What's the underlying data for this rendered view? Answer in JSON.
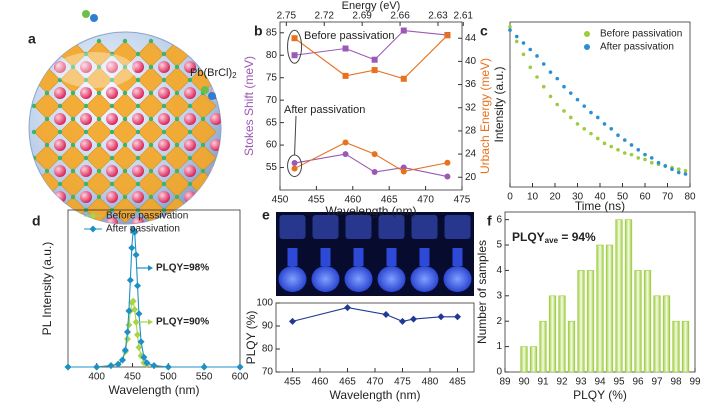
{
  "illustration": {
    "panel": "a",
    "label": "Pb(BrCl)",
    "label_sub": "2"
  },
  "chart_data": [
    {
      "panel": "b",
      "type": "line",
      "x_label": "Wavelength (nm)",
      "y_label": "Stokes Shift (meV)",
      "y2_label": "Urbach Energy (meV)",
      "x2_label": "Energy (eV)",
      "x": [
        452,
        459,
        463,
        467,
        473
      ],
      "series": [
        {
          "color": "#9b59b6",
          "marker": "square",
          "values": [
            80,
            81.5,
            79,
            85.5,
            84.5
          ]
        },
        {
          "color": "#9b59b6",
          "marker": "circle",
          "values": [
            56,
            58,
            54,
            55,
            53
          ]
        },
        {
          "color": "#e8711c",
          "marker": "square",
          "axis": "y2",
          "values": [
            44,
            37.5,
            38.5,
            37,
            44.5
          ]
        },
        {
          "color": "#e8711c",
          "marker": "circle",
          "axis": "y2",
          "values": [
            21.5,
            26,
            24,
            21,
            22.5
          ]
        }
      ],
      "annotations": [
        "Before passivation",
        "After passivation"
      ],
      "xlim": [
        450,
        475
      ],
      "xticks": [
        450,
        455,
        460,
        465,
        470,
        475
      ],
      "ylim": [
        50,
        87.4
      ],
      "yticks": [
        55,
        60,
        65,
        70,
        75,
        80,
        85
      ],
      "y2lim": [
        17.8,
        46.8
      ],
      "y2ticks": [
        20,
        24,
        28,
        32,
        36,
        40,
        44
      ],
      "x2lim": [
        2.755,
        2.611
      ],
      "x2ticks": [
        2.75,
        2.72,
        2.69,
        2.66,
        2.63,
        2.61
      ]
    },
    {
      "panel": "c",
      "type": "scatter",
      "x_label": "Time (ns)",
      "y_label": "Intensity (a.u.)",
      "x": [
        0,
        3,
        6,
        9,
        12,
        15,
        18,
        21,
        24,
        27,
        30,
        33,
        36,
        39,
        42,
        45,
        48,
        51,
        54,
        57,
        60,
        63,
        66,
        69,
        72,
        75,
        78
      ],
      "series": [
        {
          "name": "Before passivation",
          "color": "#9ccc3c",
          "values": [
            0.99,
            0.9,
            0.82,
            0.74,
            0.68,
            0.62,
            0.56,
            0.51,
            0.47,
            0.43,
            0.39,
            0.36,
            0.33,
            0.3,
            0.27,
            0.25,
            0.23,
            0.21,
            0.2,
            0.18,
            0.17,
            0.15,
            0.14,
            0.13,
            0.12,
            0.11,
            0.1
          ]
        },
        {
          "name": "After passivation",
          "color": "#2a8fd0",
          "values": [
            0.97,
            0.93,
            0.89,
            0.85,
            0.81,
            0.76,
            0.71,
            0.67,
            0.62,
            0.58,
            0.54,
            0.5,
            0.46,
            0.43,
            0.39,
            0.36,
            0.32,
            0.29,
            0.26,
            0.23,
            0.2,
            0.18,
            0.15,
            0.13,
            0.11,
            0.09,
            0.08
          ]
        }
      ],
      "xlim": [
        0,
        80
      ],
      "xticks": [
        0,
        10,
        20,
        30,
        40,
        50,
        60,
        70,
        80
      ],
      "ylim": [
        0,
        1.02
      ]
    },
    {
      "panel": "d",
      "type": "line",
      "x_label": "Wavelength (nm)",
      "y_label": "PL Intensity (a.u.)",
      "x": [
        360,
        400,
        420,
        430,
        436,
        440,
        443,
        445,
        447,
        449,
        451,
        453,
        455,
        457,
        459,
        462,
        466,
        470,
        480,
        500,
        550,
        600
      ],
      "series": [
        {
          "name": "Before passivation",
          "color": "#a8d44a",
          "marker": "diamond",
          "values": [
            0,
            0,
            0.01,
            0.02,
            0.05,
            0.11,
            0.2,
            0.3,
            0.4,
            0.46,
            0.47,
            0.41,
            0.32,
            0.23,
            0.14,
            0.08,
            0.03,
            0.02,
            0.01,
            0,
            0,
            0
          ]
        },
        {
          "name": "After passivation",
          "color": "#1e90c8",
          "marker": "diamond",
          "values": [
            0,
            0,
            0.01,
            0.02,
            0.05,
            0.12,
            0.25,
            0.4,
            0.62,
            0.85,
            0.98,
            0.96,
            0.8,
            0.58,
            0.38,
            0.18,
            0.07,
            0.03,
            0.01,
            0,
            0,
            0
          ]
        }
      ],
      "annotations": [
        "PLQY=98%",
        "PLQY=90%"
      ],
      "xlim": [
        360,
        600
      ],
      "xticks": [
        400,
        450,
        500,
        550,
        600
      ],
      "ylim": [
        0,
        1.12
      ]
    },
    {
      "panel": "e",
      "type": "line",
      "x_label": "Wavelength (nm)",
      "y_label": "PLQY (%)",
      "x": [
        455,
        465,
        472,
        475,
        477,
        482,
        485
      ],
      "values": [
        92,
        98,
        95,
        92,
        93,
        94,
        94
      ],
      "color": "#1f3a93",
      "marker": "diamond",
      "xlim": [
        452,
        488
      ],
      "xticks": [
        455,
        460,
        465,
        470,
        475,
        480,
        485
      ],
      "ylim": [
        70,
        100
      ],
      "yticks": [
        70,
        80,
        90,
        100
      ]
    },
    {
      "panel": "f",
      "type": "histogram",
      "x_label": "PLQY (%)",
      "y_label": "Number of samples",
      "bins": [
        89.75,
        90.25,
        90.75,
        91.25,
        91.75,
        92.25,
        92.75,
        93.25,
        93.75,
        94.25,
        94.75,
        95.25,
        95.75,
        96.25,
        96.75,
        97.25,
        97.75,
        98.25,
        98.75
      ],
      "counts": [
        1,
        1,
        2,
        3,
        3,
        2,
        4,
        4,
        5,
        5,
        6,
        6,
        4,
        4,
        3,
        3,
        2,
        2
      ],
      "color": "#9ccc3c",
      "annotation": {
        "text": "PLQY",
        "sub": "ave",
        "rest": " = 94%"
      },
      "xlim": [
        89,
        99
      ],
      "xticks": [
        89,
        90,
        91,
        92,
        93,
        94,
        95,
        96,
        97,
        98,
        99
      ],
      "ylim": [
        0,
        6.3
      ],
      "yticks": [
        0,
        1,
        2,
        3,
        4,
        5,
        6
      ]
    }
  ]
}
